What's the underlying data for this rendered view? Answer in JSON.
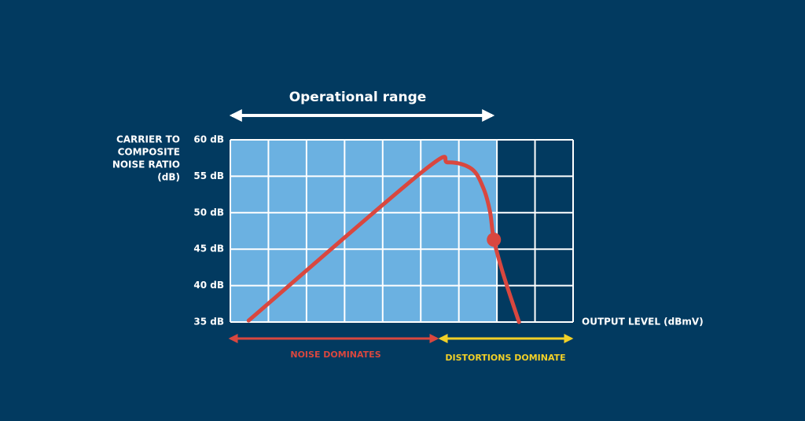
{
  "chart_data": {
    "type": "line",
    "title": "Operational range",
    "y_label": [
      "CARRIER TO",
      "COMPOSITE",
      "NOISE RATIO",
      "(dB)"
    ],
    "x_label": "OUTPUT LEVEL (dBmV)",
    "annotations": [
      "NOISE DOMINATES",
      "DISTORTIONS DOMINATE"
    ],
    "xlim": [
      0,
      9
    ],
    "ylim": [
      35,
      60
    ],
    "yticks": [
      {
        "value": 35,
        "label": "35 dB"
      },
      {
        "value": 40,
        "label": "40 dB"
      },
      {
        "value": 45,
        "label": "45 dB"
      },
      {
        "value": 50,
        "label": "50 dB"
      },
      {
        "value": 55,
        "label": "55 dB"
      },
      {
        "value": 60,
        "label": "60 dB"
      }
    ],
    "grid": true,
    "series": [
      {
        "color": "#d9473f",
        "x": [
          0.48,
          5.06,
          5.72,
          6.34,
          6.65,
          6.82,
          6.92,
          7.17,
          7.58
        ],
        "values": [
          35.2,
          55.7,
          56.9,
          56.0,
          53.3,
          50.1,
          46.3,
          41.5,
          35.0
        ]
      }
    ],
    "point": {
      "x": 6.92,
      "y": 46.3,
      "color": "#d9473f"
    }
  }
}
